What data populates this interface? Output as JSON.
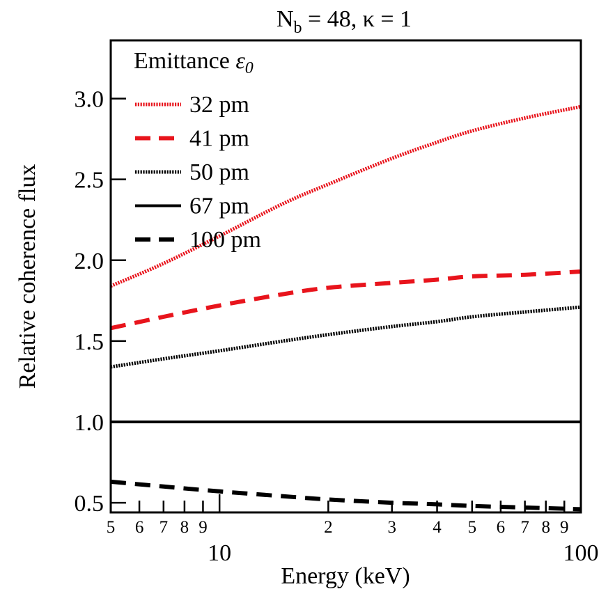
{
  "chart_data": {
    "type": "line",
    "title_main": "N",
    "title_sub": "b",
    "title_rest": " = 48, κ = 1",
    "xlabel": "Energy (keV)",
    "ylabel": "Relative coherence flux",
    "x_scale": "log",
    "xlim": [
      5,
      100
    ],
    "ylim": [
      0.44,
      3.36
    ],
    "y_ticks": [
      {
        "value": 0.5,
        "label": "0.5"
      },
      {
        "value": 1.0,
        "label": "1.0"
      },
      {
        "value": 1.5,
        "label": "1.5"
      },
      {
        "value": 2.0,
        "label": "2.0"
      },
      {
        "value": 2.5,
        "label": "2.5"
      },
      {
        "value": 3.0,
        "label": "3.0"
      }
    ],
    "x_minor_ticks": [
      {
        "value": 5,
        "label": "5"
      },
      {
        "value": 6,
        "label": "6"
      },
      {
        "value": 7,
        "label": "7"
      },
      {
        "value": 8,
        "label": "8"
      },
      {
        "value": 9,
        "label": "9"
      },
      {
        "value": 20,
        "label": "2"
      },
      {
        "value": 30,
        "label": "3"
      },
      {
        "value": 40,
        "label": "4"
      },
      {
        "value": 50,
        "label": "5"
      },
      {
        "value": 60,
        "label": "6"
      },
      {
        "value": 70,
        "label": "7"
      },
      {
        "value": 80,
        "label": "8"
      },
      {
        "value": 90,
        "label": "9"
      }
    ],
    "x_major_ticks": [
      {
        "value": 10,
        "label": "10"
      },
      {
        "value": 100,
        "label": "100"
      }
    ],
    "legend_title_text": "Emittance ",
    "legend_title_symbol": "ε",
    "legend_title_subscript": "0",
    "legend_position": "top-left",
    "grid": false,
    "series": [
      {
        "name": "32 pm",
        "color": "#e8141c",
        "style": "dotted",
        "x": [
          5,
          7,
          10,
          15,
          20,
          30,
          40,
          50,
          70,
          100
        ],
        "y": [
          1.84,
          1.98,
          2.15,
          2.35,
          2.47,
          2.63,
          2.73,
          2.8,
          2.88,
          2.95
        ]
      },
      {
        "name": "41 pm",
        "color": "#e8141c",
        "style": "dashed",
        "x": [
          5,
          7,
          10,
          15,
          20,
          30,
          40,
          50,
          70,
          100
        ],
        "y": [
          1.58,
          1.65,
          1.72,
          1.79,
          1.83,
          1.86,
          1.88,
          1.9,
          1.91,
          1.93
        ]
      },
      {
        "name": "50 pm",
        "color": "#000000",
        "style": "dotted",
        "x": [
          5,
          7,
          10,
          15,
          20,
          30,
          40,
          50,
          70,
          100
        ],
        "y": [
          1.34,
          1.39,
          1.44,
          1.5,
          1.54,
          1.59,
          1.62,
          1.65,
          1.68,
          1.71
        ]
      },
      {
        "name": "67 pm",
        "color": "#000000",
        "style": "solid",
        "x": [
          5,
          100
        ],
        "y": [
          1.0,
          1.0
        ]
      },
      {
        "name": "100 pm",
        "color": "#000000",
        "style": "dashed",
        "x": [
          5,
          7,
          10,
          15,
          20,
          30,
          40,
          50,
          70,
          100
        ],
        "y": [
          0.63,
          0.6,
          0.57,
          0.54,
          0.52,
          0.5,
          0.49,
          0.48,
          0.47,
          0.46
        ]
      }
    ]
  }
}
